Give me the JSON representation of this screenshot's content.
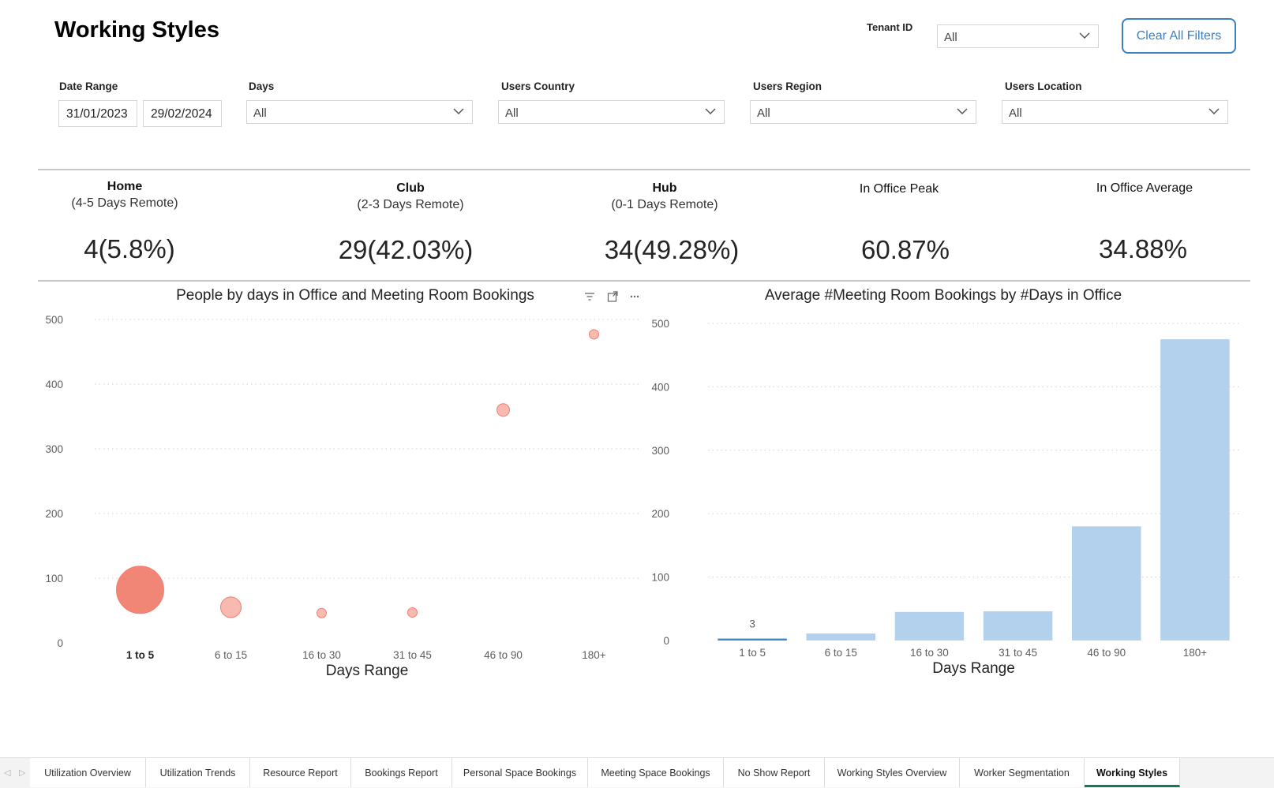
{
  "page": {
    "title": "Working Styles"
  },
  "filters": {
    "tenant": {
      "label": "Tenant ID",
      "value": "All"
    },
    "clear_label": "Clear All Filters",
    "date_range": {
      "label": "Date Range",
      "start": "31/01/2023",
      "end": "29/02/2024"
    },
    "days": {
      "label": "Days",
      "value": "All"
    },
    "country": {
      "label": "Users Country",
      "value": "All"
    },
    "region": {
      "label": "Users Region",
      "value": "All"
    },
    "location": {
      "label": "Users Location",
      "value": "All"
    }
  },
  "kpis": [
    {
      "title": "Home",
      "subtitle": "(4-5 Days Remote)",
      "value": "4(5.8%)"
    },
    {
      "title": "Club",
      "subtitle": "(2-3 Days Remote)",
      "value": "29(42.03%)"
    },
    {
      "title": "Hub",
      "subtitle": "(0-1 Days Remote)",
      "value": "34(49.28%)"
    },
    {
      "title": "In Office Peak",
      "value": "60.87%"
    },
    {
      "title": "In Office Average",
      "value": "34.88%"
    }
  ],
  "visual_header_icons": [
    "filter-icon",
    "focus-mode-icon",
    "more-options-icon"
  ],
  "chart_data": [
    {
      "type": "scatter",
      "title": "People by days in Office and Meeting Room Bookings",
      "xlabel": "Days Range",
      "ylabel": "",
      "categories": [
        "1 to 5",
        "6 to 15",
        "16 to 30",
        "31 to 45",
        "46 to 90",
        "180+"
      ],
      "y": [
        82,
        55,
        46,
        47,
        360,
        477
      ],
      "ylim": [
        0,
        500
      ],
      "yticks": [
        0,
        100,
        200,
        300,
        400,
        500
      ],
      "grid": true,
      "color": "#f08070"
    },
    {
      "type": "bar",
      "title": "Average #Meeting Room Bookings by #Days in Office",
      "xlabel": "Days Range",
      "ylabel": "",
      "categories": [
        "1 to 5",
        "6 to 15",
        "16 to 30",
        "31 to 45",
        "46 to 90",
        "180+"
      ],
      "values": [
        3,
        11,
        45,
        46,
        180,
        475
      ],
      "data_labels": [
        "3",
        "",
        "",
        "",
        "",
        ""
      ],
      "ylim": [
        0,
        500
      ],
      "yticks": [
        0,
        100,
        200,
        300,
        400,
        500
      ],
      "grid": true,
      "color": "#b3d1ec",
      "highlight_color": "#3a86c8"
    }
  ],
  "tabs": [
    {
      "label": "Utilization Overview"
    },
    {
      "label": "Utilization Trends"
    },
    {
      "label": "Resource Report"
    },
    {
      "label": "Bookings Report"
    },
    {
      "label": "Personal Space Bookings"
    },
    {
      "label": "Meeting Space Bookings"
    },
    {
      "label": "No Show Report"
    },
    {
      "label": "Working Styles Overview"
    },
    {
      "label": "Worker Segmentation"
    },
    {
      "label": "Working Styles",
      "active": true
    }
  ]
}
